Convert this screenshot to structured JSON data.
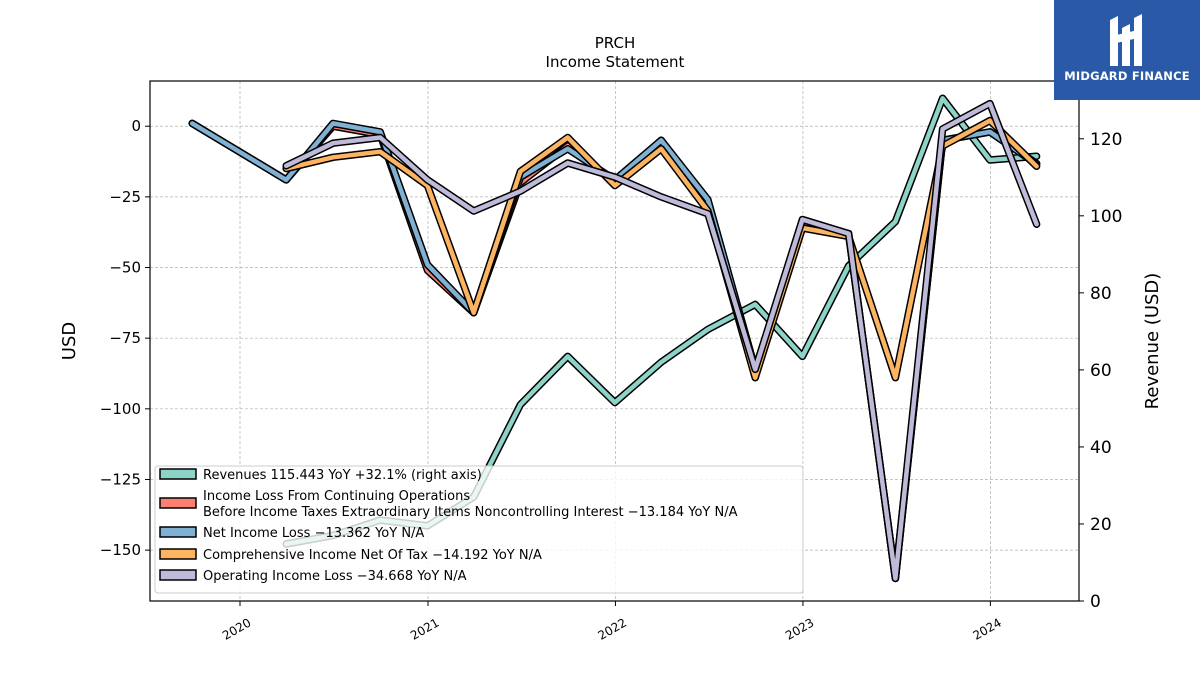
{
  "brand": {
    "name": "MIDGARD FINANCE",
    "color": "#2a5aa7"
  },
  "chart_data": {
    "type": "line",
    "title": "PRCH",
    "subtitle": "Income Statement",
    "ylabel": "USD",
    "ylabel_right": "Revenue (USD)",
    "ylim": [
      -168,
      16
    ],
    "ylim_right": [
      0,
      135
    ],
    "yticks": [
      0,
      -25,
      -50,
      -75,
      -100,
      -125,
      -150
    ],
    "yticks_right": [
      0,
      20,
      40,
      60,
      80,
      100,
      120
    ],
    "x_ticks": [
      "2020",
      "2021",
      "2022",
      "2023",
      "2024"
    ],
    "grid": true,
    "legend_position": "lower-left",
    "series": [
      {
        "name": "Revenues",
        "legend": "Revenues  115.443 YoY +32.1% (right axis)",
        "color": "#8dd3c7",
        "axis": "right",
        "points": [
          [
            "2020-03-31",
            14.8
          ],
          [
            "2020-06-30",
            17.0
          ],
          [
            "2020-09-30",
            21.0
          ],
          [
            "2020-12-31",
            19.5
          ],
          [
            "2021-03-31",
            27.0
          ],
          [
            "2021-06-30",
            51.0
          ],
          [
            "2021-09-30",
            63.5
          ],
          [
            "2021-12-31",
            51.5
          ],
          [
            "2022-03-31",
            62.0
          ],
          [
            "2022-06-30",
            70.5
          ],
          [
            "2022-09-30",
            77.0
          ],
          [
            "2022-12-31",
            63.5
          ],
          [
            "2023-03-31",
            87.0
          ],
          [
            "2023-06-30",
            98.5
          ],
          [
            "2023-09-30",
            130.5
          ],
          [
            "2023-12-31",
            114.5
          ],
          [
            "2024-03-31",
            115.443
          ]
        ]
      },
      {
        "name": "Income Loss From Continuing Operations Before Income Taxes Extraordinary Items Noncontrolling Interest",
        "legend": "Income Loss From Continuing Operations\nBefore Income Taxes Extraordinary Items Noncontrolling Interest  -13.184 YoY N/A",
        "color": "#fb8072",
        "axis": "left",
        "points": [
          [
            "2019-09-30",
            1
          ],
          [
            "2020-03-31",
            -19
          ],
          [
            "2020-06-30",
            0
          ],
          [
            "2020-09-30",
            -3
          ],
          [
            "2020-12-31",
            -51
          ],
          [
            "2021-03-31",
            -66
          ],
          [
            "2021-06-30",
            -20
          ],
          [
            "2021-09-30",
            -7
          ],
          [
            "2021-12-31",
            -20
          ],
          [
            "2022-03-31",
            -5
          ],
          [
            "2022-06-30",
            -27
          ],
          [
            "2022-09-30",
            -86
          ],
          [
            "2022-12-31",
            -36
          ],
          [
            "2023-03-31",
            -38
          ],
          [
            "2023-06-30",
            -160
          ],
          [
            "2023-09-30",
            -5
          ],
          [
            "2023-12-31",
            -2
          ],
          [
            "2024-03-31",
            -13.184
          ]
        ]
      },
      {
        "name": "Net Income Loss",
        "legend": "Net Income Loss  -13.362 YoY N/A",
        "color": "#80b1d3",
        "axis": "left",
        "points": [
          [
            "2019-09-30",
            1
          ],
          [
            "2020-03-31",
            -19
          ],
          [
            "2020-06-30",
            1
          ],
          [
            "2020-09-30",
            -2
          ],
          [
            "2020-12-31",
            -49
          ],
          [
            "2021-03-31",
            -66
          ],
          [
            "2021-06-30",
            -18
          ],
          [
            "2021-09-30",
            -8
          ],
          [
            "2021-12-31",
            -19
          ],
          [
            "2022-03-31",
            -5
          ],
          [
            "2022-06-30",
            -26
          ],
          [
            "2022-09-30",
            -86
          ],
          [
            "2022-12-31",
            -35
          ],
          [
            "2023-03-31",
            -38
          ],
          [
            "2023-06-30",
            -160
          ],
          [
            "2023-09-30",
            -5
          ],
          [
            "2023-12-31",
            -2
          ],
          [
            "2024-03-31",
            -13.362
          ]
        ]
      },
      {
        "name": "Comprehensive Income Net Of Tax",
        "legend": "Comprehensive Income Net Of Tax  -14.192 YoY N/A",
        "color": "#fdb462",
        "axis": "left",
        "points": [
          [
            "2020-03-31",
            -15
          ],
          [
            "2020-06-30",
            -11
          ],
          [
            "2020-09-30",
            -9
          ],
          [
            "2020-12-31",
            -21
          ],
          [
            "2021-03-31",
            -66
          ],
          [
            "2021-06-30",
            -16
          ],
          [
            "2021-09-30",
            -4
          ],
          [
            "2021-12-31",
            -21
          ],
          [
            "2022-03-31",
            -8
          ],
          [
            "2022-06-30",
            -30
          ],
          [
            "2022-09-30",
            -89
          ],
          [
            "2022-12-31",
            -36
          ],
          [
            "2023-03-31",
            -39
          ],
          [
            "2023-06-30",
            -89
          ],
          [
            "2023-09-30",
            -7
          ],
          [
            "2023-12-31",
            2
          ],
          [
            "2024-03-31",
            -14.192
          ]
        ]
      },
      {
        "name": "Operating Income Loss",
        "legend": "Operating Income Loss  -34.668 YoY N/A",
        "color": "#bebada",
        "axis": "left",
        "points": [
          [
            "2020-03-31",
            -14
          ],
          [
            "2020-06-30",
            -6
          ],
          [
            "2020-09-30",
            -4
          ],
          [
            "2020-12-31",
            -19
          ],
          [
            "2021-03-31",
            -30
          ],
          [
            "2021-06-30",
            -23
          ],
          [
            "2021-09-30",
            -13
          ],
          [
            "2021-12-31",
            -18
          ],
          [
            "2022-03-31",
            -25
          ],
          [
            "2022-06-30",
            -31
          ],
          [
            "2022-09-30",
            -86
          ],
          [
            "2022-12-31",
            -33
          ],
          [
            "2023-03-31",
            -38
          ],
          [
            "2023-06-30",
            -160
          ],
          [
            "2023-09-30",
            -1
          ],
          [
            "2023-12-31",
            8
          ],
          [
            "2024-03-31",
            -34.668
          ]
        ]
      }
    ]
  }
}
